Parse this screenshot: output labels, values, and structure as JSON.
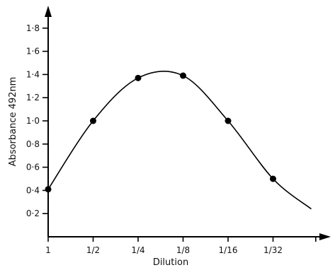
{
  "chart_data": {
    "type": "line",
    "title": "",
    "xlabel": "Dilution",
    "ylabel": "Absorbance 492nm",
    "categories": [
      "1",
      "1/2",
      "1/4",
      "1/8",
      "1/16",
      "1/32"
    ],
    "x": [
      0,
      1,
      2,
      3,
      4,
      5
    ],
    "values": [
      0.41,
      1.0,
      1.37,
      1.39,
      1.0,
      0.5
    ],
    "yticks": [
      "0·2",
      "0·4",
      "0·6",
      "0·8",
      "1·0",
      "1·2",
      "1·4",
      "1·6",
      "1·8"
    ],
    "ytick_values": [
      0.2,
      0.4,
      0.6,
      0.8,
      1.0,
      1.2,
      1.4,
      1.6,
      1.8
    ],
    "ylim": [
      0,
      1.95
    ],
    "grid": false,
    "legend": false,
    "color": "#000000"
  }
}
